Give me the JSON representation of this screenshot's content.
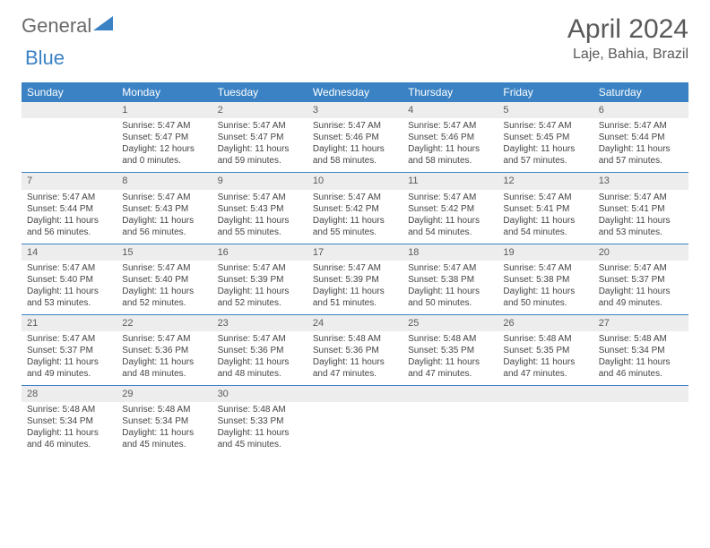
{
  "logo": {
    "part1": "General",
    "part2": "Blue"
  },
  "title": "April 2024",
  "location": "Laje, Bahia, Brazil",
  "dow": [
    "Sunday",
    "Monday",
    "Tuesday",
    "Wednesday",
    "Thursday",
    "Friday",
    "Saturday"
  ],
  "colors": {
    "accent": "#3b82c4",
    "header_text": "#595959",
    "cell_head_bg": "#ededed"
  },
  "layout": {
    "start_dow": 1,
    "days_in_month": 30,
    "rows": 5
  },
  "days": {
    "1": {
      "sr": "5:47 AM",
      "ss": "5:47 PM",
      "dl": "12 hours and 0 minutes."
    },
    "2": {
      "sr": "5:47 AM",
      "ss": "5:47 PM",
      "dl": "11 hours and 59 minutes."
    },
    "3": {
      "sr": "5:47 AM",
      "ss": "5:46 PM",
      "dl": "11 hours and 58 minutes."
    },
    "4": {
      "sr": "5:47 AM",
      "ss": "5:46 PM",
      "dl": "11 hours and 58 minutes."
    },
    "5": {
      "sr": "5:47 AM",
      "ss": "5:45 PM",
      "dl": "11 hours and 57 minutes."
    },
    "6": {
      "sr": "5:47 AM",
      "ss": "5:44 PM",
      "dl": "11 hours and 57 minutes."
    },
    "7": {
      "sr": "5:47 AM",
      "ss": "5:44 PM",
      "dl": "11 hours and 56 minutes."
    },
    "8": {
      "sr": "5:47 AM",
      "ss": "5:43 PM",
      "dl": "11 hours and 56 minutes."
    },
    "9": {
      "sr": "5:47 AM",
      "ss": "5:43 PM",
      "dl": "11 hours and 55 minutes."
    },
    "10": {
      "sr": "5:47 AM",
      "ss": "5:42 PM",
      "dl": "11 hours and 55 minutes."
    },
    "11": {
      "sr": "5:47 AM",
      "ss": "5:42 PM",
      "dl": "11 hours and 54 minutes."
    },
    "12": {
      "sr": "5:47 AM",
      "ss": "5:41 PM",
      "dl": "11 hours and 54 minutes."
    },
    "13": {
      "sr": "5:47 AM",
      "ss": "5:41 PM",
      "dl": "11 hours and 53 minutes."
    },
    "14": {
      "sr": "5:47 AM",
      "ss": "5:40 PM",
      "dl": "11 hours and 53 minutes."
    },
    "15": {
      "sr": "5:47 AM",
      "ss": "5:40 PM",
      "dl": "11 hours and 52 minutes."
    },
    "16": {
      "sr": "5:47 AM",
      "ss": "5:39 PM",
      "dl": "11 hours and 52 minutes."
    },
    "17": {
      "sr": "5:47 AM",
      "ss": "5:39 PM",
      "dl": "11 hours and 51 minutes."
    },
    "18": {
      "sr": "5:47 AM",
      "ss": "5:38 PM",
      "dl": "11 hours and 50 minutes."
    },
    "19": {
      "sr": "5:47 AM",
      "ss": "5:38 PM",
      "dl": "11 hours and 50 minutes."
    },
    "20": {
      "sr": "5:47 AM",
      "ss": "5:37 PM",
      "dl": "11 hours and 49 minutes."
    },
    "21": {
      "sr": "5:47 AM",
      "ss": "5:37 PM",
      "dl": "11 hours and 49 minutes."
    },
    "22": {
      "sr": "5:47 AM",
      "ss": "5:36 PM",
      "dl": "11 hours and 48 minutes."
    },
    "23": {
      "sr": "5:47 AM",
      "ss": "5:36 PM",
      "dl": "11 hours and 48 minutes."
    },
    "24": {
      "sr": "5:48 AM",
      "ss": "5:36 PM",
      "dl": "11 hours and 47 minutes."
    },
    "25": {
      "sr": "5:48 AM",
      "ss": "5:35 PM",
      "dl": "11 hours and 47 minutes."
    },
    "26": {
      "sr": "5:48 AM",
      "ss": "5:35 PM",
      "dl": "11 hours and 47 minutes."
    },
    "27": {
      "sr": "5:48 AM",
      "ss": "5:34 PM",
      "dl": "11 hours and 46 minutes."
    },
    "28": {
      "sr": "5:48 AM",
      "ss": "5:34 PM",
      "dl": "11 hours and 46 minutes."
    },
    "29": {
      "sr": "5:48 AM",
      "ss": "5:34 PM",
      "dl": "11 hours and 45 minutes."
    },
    "30": {
      "sr": "5:48 AM",
      "ss": "5:33 PM",
      "dl": "11 hours and 45 minutes."
    }
  },
  "labels": {
    "sunrise": "Sunrise:",
    "sunset": "Sunset:",
    "daylight": "Daylight:"
  }
}
